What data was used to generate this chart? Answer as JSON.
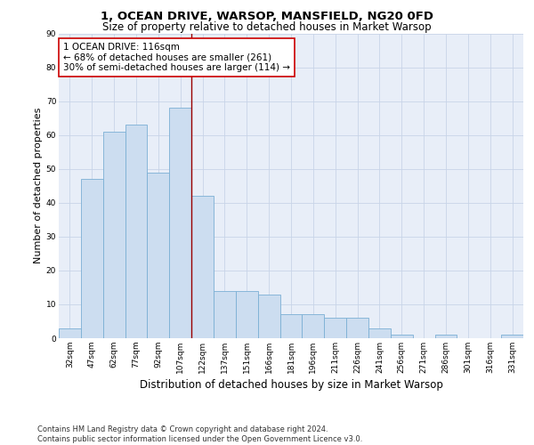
{
  "title": "1, OCEAN DRIVE, WARSOP, MANSFIELD, NG20 0FD",
  "subtitle": "Size of property relative to detached houses in Market Warsop",
  "xlabel": "Distribution of detached houses by size in Market Warsop",
  "ylabel": "Number of detached properties",
  "categories": [
    "32sqm",
    "47sqm",
    "62sqm",
    "77sqm",
    "92sqm",
    "107sqm",
    "122sqm",
    "137sqm",
    "151sqm",
    "166sqm",
    "181sqm",
    "196sqm",
    "211sqm",
    "226sqm",
    "241sqm",
    "256sqm",
    "271sqm",
    "286sqm",
    "301sqm",
    "316sqm",
    "331sqm"
  ],
  "values": [
    3,
    47,
    61,
    63,
    49,
    68,
    42,
    14,
    14,
    13,
    7,
    7,
    6,
    6,
    3,
    1,
    0,
    1,
    0,
    0,
    1
  ],
  "bar_color": "#ccddf0",
  "bar_edge_color": "#7bafd4",
  "bar_width": 1.0,
  "vline_x": 6,
  "vline_color": "#990000",
  "annotation_text": "1 OCEAN DRIVE: 116sqm\n← 68% of detached houses are smaller (261)\n30% of semi-detached houses are larger (114) →",
  "annotation_box_color": "#ffffff",
  "annotation_box_edge_color": "#cc0000",
  "ylim": [
    0,
    90
  ],
  "yticks": [
    0,
    10,
    20,
    30,
    40,
    50,
    60,
    70,
    80,
    90
  ],
  "grid_color": "#c8d4e8",
  "bg_color": "#e8eef8",
  "footer_line1": "Contains HM Land Registry data © Crown copyright and database right 2024.",
  "footer_line2": "Contains public sector information licensed under the Open Government Licence v3.0.",
  "title_fontsize": 9.5,
  "subtitle_fontsize": 8.5,
  "xlabel_fontsize": 8.5,
  "ylabel_fontsize": 8,
  "tick_fontsize": 6.5,
  "annotation_fontsize": 7.5,
  "footer_fontsize": 6.0
}
